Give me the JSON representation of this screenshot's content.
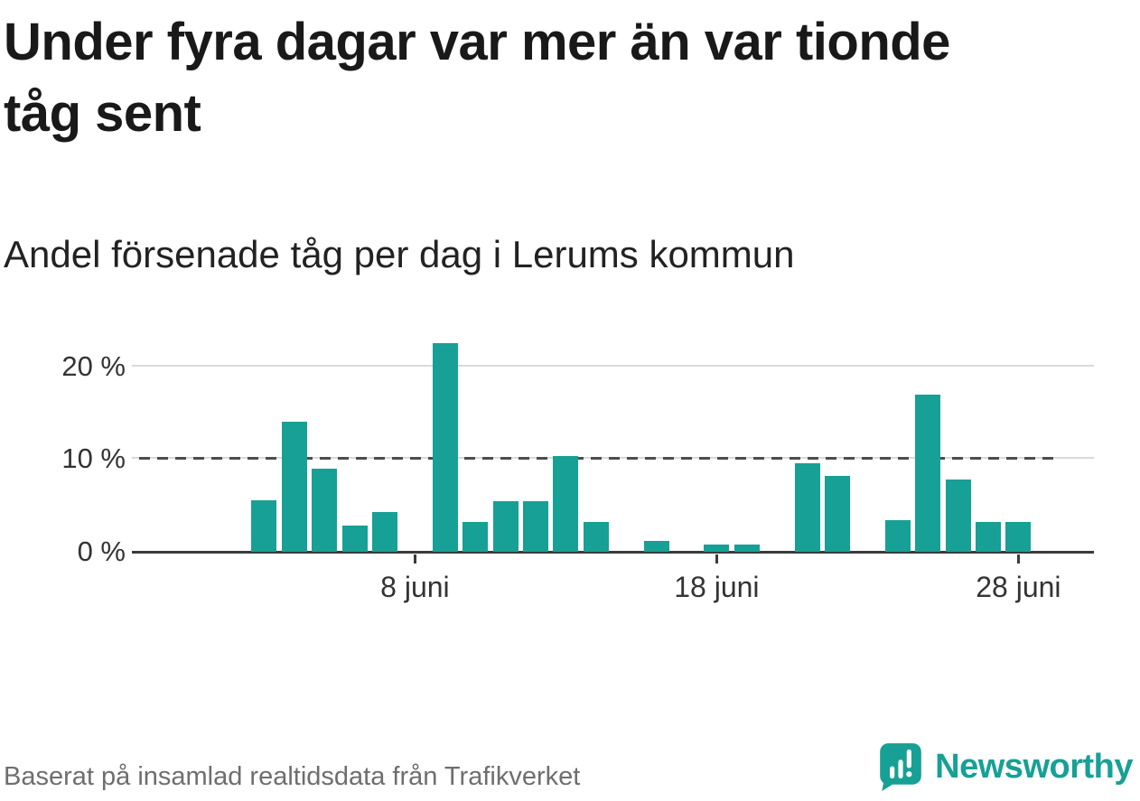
{
  "header": {
    "title": "Under fyra dagar var mer än var tionde tåg sent",
    "subtitle": "Andel försenade tåg per dag i Lerums kommun"
  },
  "footer": {
    "source": "Baserat på insamlad realtidsdata från Trafikverket",
    "brand": "Newsworthy"
  },
  "colors": {
    "accent": "#17A095",
    "grid": "#d9d9d9",
    "axis": "#3b3b3b",
    "reference_line": "#4d4d4d",
    "text": "#191919",
    "muted_text": "#6e6e6e"
  },
  "chart_data": {
    "type": "bar",
    "title": "Under fyra dagar var mer än var tionde tåg sent",
    "subtitle": "Andel försenade tåg per dag i Lerums kommun",
    "unit": "%",
    "ylim": [
      0,
      24
    ],
    "grid": true,
    "legend": false,
    "bar_color": "#17A095",
    "reference_line": {
      "value": 10,
      "style": "dashed"
    },
    "y_axis": {
      "ticks": [
        {
          "value": 0,
          "label": "0 %"
        },
        {
          "value": 10,
          "label": "10 %"
        },
        {
          "value": 20,
          "label": "20 %"
        }
      ]
    },
    "x_axis": {
      "domain_days": [
        2,
        30
      ],
      "month": "juni",
      "ticks": [
        {
          "day": 8,
          "label": "8 juni"
        },
        {
          "day": 18,
          "label": "18 juni"
        },
        {
          "day": 28,
          "label": "28 juni"
        }
      ]
    },
    "points": [
      {
        "day": 3,
        "label": "3 juni",
        "value": 5.5
      },
      {
        "day": 4,
        "label": "4 juni",
        "value": 14
      },
      {
        "day": 5,
        "label": "5 juni",
        "value": 9
      },
      {
        "day": 6,
        "label": "6 juni",
        "value": 2.8
      },
      {
        "day": 7,
        "label": "7 juni",
        "value": 4.3
      },
      {
        "day": 9,
        "label": "9 juni",
        "value": 22.5
      },
      {
        "day": 10,
        "label": "10 juni",
        "value": 3.2
      },
      {
        "day": 11,
        "label": "11 juni",
        "value": 5.4
      },
      {
        "day": 12,
        "label": "12 juni",
        "value": 5.4
      },
      {
        "day": 13,
        "label": "13 juni",
        "value": 10.3
      },
      {
        "day": 14,
        "label": "14 juni",
        "value": 3.2
      },
      {
        "day": 16,
        "label": "16 juni",
        "value": 1.1
      },
      {
        "day": 18,
        "label": "18 juni",
        "value": 0.8
      },
      {
        "day": 19,
        "label": "19 juni",
        "value": 0.8
      },
      {
        "day": 21,
        "label": "21 juni",
        "value": 9.5
      },
      {
        "day": 22,
        "label": "22 juni",
        "value": 8.2
      },
      {
        "day": 24,
        "label": "24 juni",
        "value": 3.4
      },
      {
        "day": 25,
        "label": "25 juni",
        "value": 17
      },
      {
        "day": 26,
        "label": "26 juni",
        "value": 7.8
      },
      {
        "day": 27,
        "label": "27 juni",
        "value": 3.2
      },
      {
        "day": 28,
        "label": "28 juni",
        "value": 3.2
      }
    ]
  }
}
